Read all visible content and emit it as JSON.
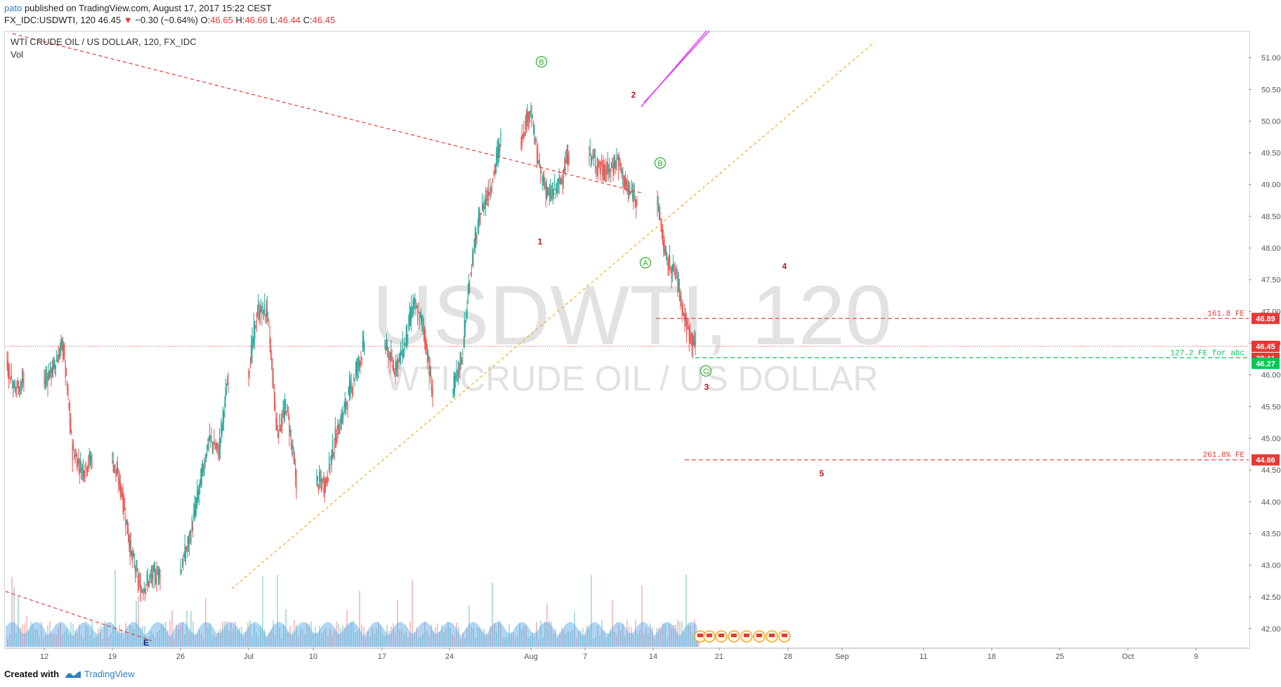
{
  "header": {
    "user": "pato",
    "published": "published on TradingView.com, August 17, 2017 15:22 CEST",
    "symbol_line": "FX_IDC:USDWTI, 120",
    "last": "46.45",
    "change_arrow": "▼",
    "change": "−0.30 (−0.64%)",
    "ohlc_o_label": "O:",
    "ohlc_o": "46.65",
    "ohlc_h_label": "H:",
    "ohlc_h": "46.66",
    "ohlc_l_label": "L:",
    "ohlc_l": "46.44",
    "ohlc_c_label": "C:",
    "ohlc_c": "46.45"
  },
  "chart": {
    "title": "WTI CRUDE OIL / US DOLLAR, 120, FX_IDC",
    "vol_label": "Vol",
    "watermark_main": "USDWTI, 120",
    "watermark_sub": "WTI CRUDE OIL / US DOLLAR",
    "colors": {
      "up": "#26a69a",
      "down": "#ef5350",
      "fib_red": "#e53935",
      "fib_green": "#00c853",
      "trend_orange": "#f5a623",
      "magenta": "#e040fb",
      "wave_green": "#2bb32b",
      "wave_red": "#b71c1c"
    }
  },
  "chart_data": {
    "type": "candlestick",
    "title": "WTI CRUDE OIL / US DOLLAR, 120, FX_IDC",
    "x_ticks": [
      "12",
      "19",
      "26",
      "Jul",
      "10",
      "17",
      "24",
      "Aug",
      "7",
      "14",
      "21",
      "28",
      "Sep",
      "11",
      "18",
      "25",
      "Oct",
      "9"
    ],
    "y_ticks": [
      "51.00",
      "50.50",
      "50.00",
      "49.50",
      "49.00",
      "48.50",
      "48.00",
      "47.50",
      "47.00",
      "46.50",
      "46.00",
      "45.50",
      "45.00",
      "44.50",
      "44.00",
      "43.50",
      "43.00",
      "42.50",
      "42.00"
    ],
    "y_range": [
      41.7,
      51.4
    ],
    "approx_closes": [
      {
        "date": "2017-06-06",
        "close": 48.1
      },
      {
        "date": "2017-06-07",
        "close": 46.3
      },
      {
        "date": "2017-06-08",
        "close": 45.8
      },
      {
        "date": "2017-06-09",
        "close": 45.9
      },
      {
        "date": "2017-06-12",
        "close": 46.1
      },
      {
        "date": "2017-06-13",
        "close": 46.5
      },
      {
        "date": "2017-06-14",
        "close": 44.8
      },
      {
        "date": "2017-06-15",
        "close": 44.5
      },
      {
        "date": "2017-06-16",
        "close": 44.7
      },
      {
        "date": "2017-06-19",
        "close": 44.2
      },
      {
        "date": "2017-06-20",
        "close": 43.2
      },
      {
        "date": "2017-06-21",
        "close": 42.6
      },
      {
        "date": "2017-06-22",
        "close": 42.8
      },
      {
        "date": "2017-06-23",
        "close": 42.9
      },
      {
        "date": "2017-06-26",
        "close": 43.4
      },
      {
        "date": "2017-06-27",
        "close": 44.2
      },
      {
        "date": "2017-06-28",
        "close": 45.0
      },
      {
        "date": "2017-06-29",
        "close": 44.8
      },
      {
        "date": "2017-06-30",
        "close": 46.0
      },
      {
        "date": "2017-07-03",
        "close": 47.0
      },
      {
        "date": "2017-07-04",
        "close": 47.0
      },
      {
        "date": "2017-07-05",
        "close": 45.1
      },
      {
        "date": "2017-07-06",
        "close": 45.5
      },
      {
        "date": "2017-07-07",
        "close": 44.3
      },
      {
        "date": "2017-07-10",
        "close": 44.3
      },
      {
        "date": "2017-07-11",
        "close": 45.0
      },
      {
        "date": "2017-07-12",
        "close": 45.5
      },
      {
        "date": "2017-07-13",
        "close": 46.0
      },
      {
        "date": "2017-07-14",
        "close": 46.5
      },
      {
        "date": "2017-07-17",
        "close": 46.1
      },
      {
        "date": "2017-07-18",
        "close": 46.4
      },
      {
        "date": "2017-07-19",
        "close": 47.1
      },
      {
        "date": "2017-07-20",
        "close": 46.8
      },
      {
        "date": "2017-07-21",
        "close": 45.7
      },
      {
        "date": "2017-07-24",
        "close": 46.3
      },
      {
        "date": "2017-07-25",
        "close": 47.8
      },
      {
        "date": "2017-07-26",
        "close": 48.6
      },
      {
        "date": "2017-07-27",
        "close": 49.0
      },
      {
        "date": "2017-07-28",
        "close": 49.7
      },
      {
        "date": "2017-07-31",
        "close": 50.2
      },
      {
        "date": "2017-08-01",
        "close": 49.2
      },
      {
        "date": "2017-08-02",
        "close": 48.8
      },
      {
        "date": "2017-08-03",
        "close": 49.0
      },
      {
        "date": "2017-08-04",
        "close": 49.5
      },
      {
        "date": "2017-08-07",
        "close": 49.3
      },
      {
        "date": "2017-08-08",
        "close": 49.2
      },
      {
        "date": "2017-08-09",
        "close": 49.4
      },
      {
        "date": "2017-08-10",
        "close": 48.9
      },
      {
        "date": "2017-08-11",
        "close": 48.8
      },
      {
        "date": "2017-08-14",
        "close": 47.8
      },
      {
        "date": "2017-08-15",
        "close": 47.6
      },
      {
        "date": "2017-08-16",
        "close": 46.8
      },
      {
        "date": "2017-08-17",
        "close": 46.45
      }
    ],
    "price_labels": [
      {
        "value": "46.89",
        "color": "#e53935"
      },
      {
        "value": "46.45",
        "color": "#e53935"
      },
      {
        "value": "38:11",
        "color": "#e53935"
      },
      {
        "value": "46.27",
        "color": "#00c853"
      },
      {
        "value": "44.66",
        "color": "#e53935"
      }
    ],
    "fib_lines": [
      {
        "label": "161.8 FE",
        "value": 46.89,
        "color": "#e53935"
      },
      {
        "label": "127.2 FE for abc",
        "value": 46.27,
        "color": "#00c853"
      },
      {
        "label": "261.8% FE",
        "value": 44.66,
        "color": "#e53935"
      }
    ],
    "wave_labels": [
      "B",
      "2",
      "B",
      "1",
      "A",
      "4",
      "C",
      "3",
      "5",
      "E"
    ],
    "grid": false,
    "volume": true
  },
  "footer": {
    "created_with": "Created with",
    "brand": "TradingView"
  }
}
